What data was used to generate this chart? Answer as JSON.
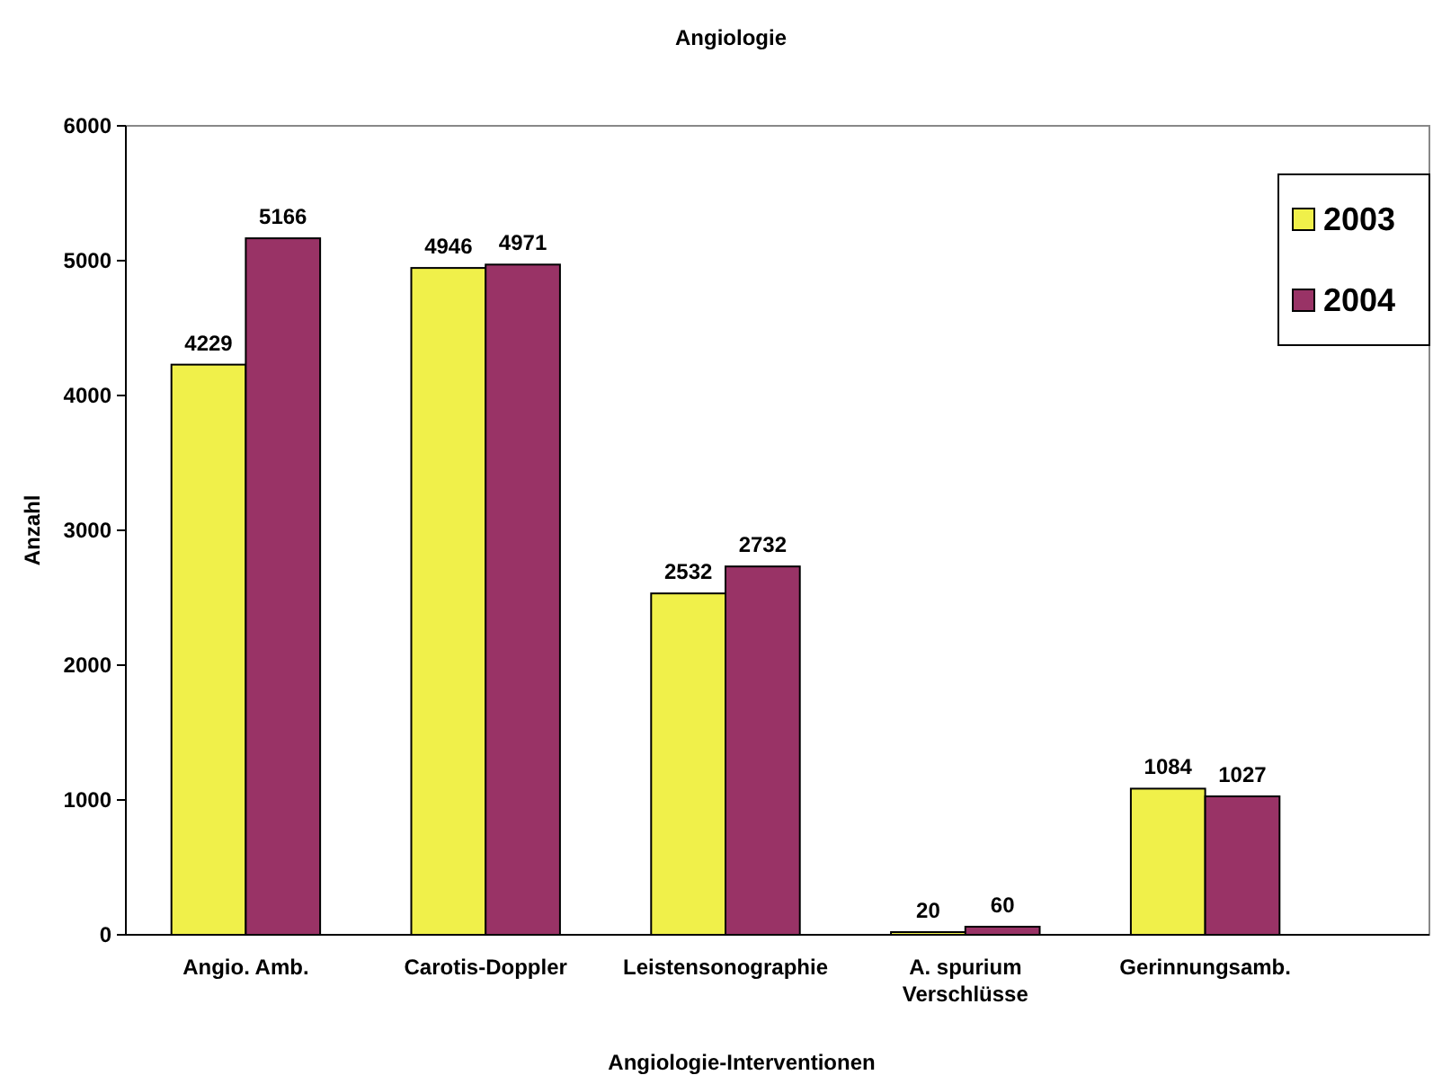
{
  "chart_data": {
    "type": "bar",
    "title": "Angiologie",
    "xlabel": "Angiologie-Interventionen",
    "ylabel": "Anzahl",
    "categories": [
      "Angio. Amb.",
      "Carotis-Doppler",
      "Leistensonographie",
      "A. spurium\nVerschlüsse",
      "Gerinnungsamb."
    ],
    "series": [
      {
        "name": "2003",
        "color": "#f0f04a",
        "values": [
          4229,
          4946,
          2532,
          20,
          1084
        ]
      },
      {
        "name": "2004",
        "color": "#993366",
        "values": [
          5166,
          4971,
          2732,
          60,
          1027
        ]
      }
    ],
    "ylim": [
      0,
      6000
    ],
    "yticks": [
      0,
      1000,
      2000,
      3000,
      4000,
      5000,
      6000
    ],
    "data_labels": true,
    "legend": "top right"
  }
}
